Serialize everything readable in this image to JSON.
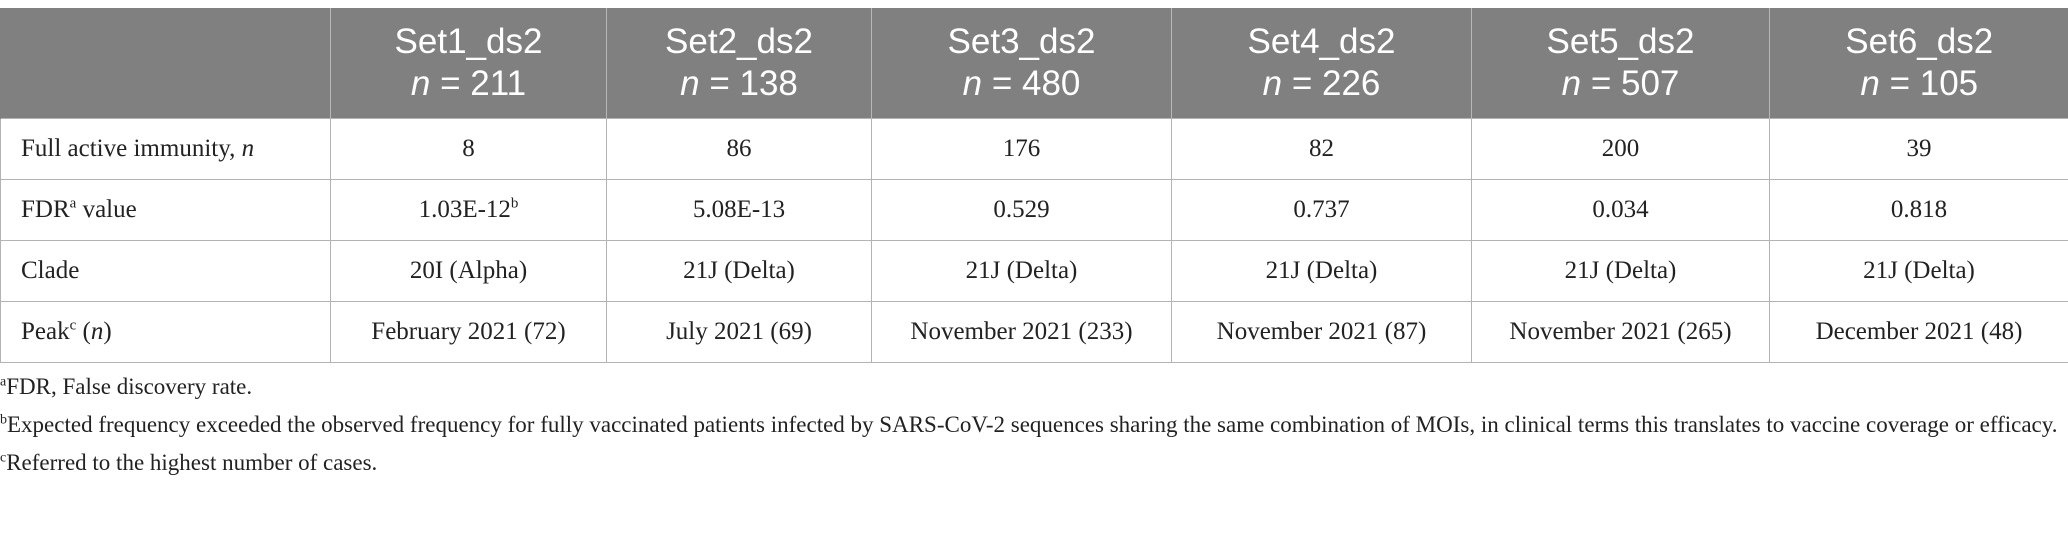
{
  "table": {
    "columns": [
      {
        "name": "Set1_ds2",
        "n_prefix": "n",
        "n_value": "= 211"
      },
      {
        "name": "Set2_ds2",
        "n_prefix": "n",
        "n_value": "= 138"
      },
      {
        "name": "Set3_ds2",
        "n_prefix": "n",
        "n_value": "= 480"
      },
      {
        "name": "Set4_ds2",
        "n_prefix": "n",
        "n_value": "= 226"
      },
      {
        "name": "Set5_ds2",
        "n_prefix": "n",
        "n_value": "= 507"
      },
      {
        "name": "Set6_ds2",
        "n_prefix": "n",
        "n_value": "= 105"
      }
    ],
    "rows": [
      {
        "label": "Full active immunity, ",
        "label_italic": "n",
        "cells": [
          "8",
          "86",
          "176",
          "82",
          "200",
          "39"
        ]
      },
      {
        "label": "FDR",
        "label_sup": "a",
        "label_rest": " value",
        "cells": [
          "1.03E-12",
          "5.08E-13",
          "0.529",
          "0.737",
          "0.034",
          "0.818"
        ],
        "first_cell_sup": "b"
      },
      {
        "label": "Clade",
        "cells": [
          "20I (Alpha)",
          "21J (Delta)",
          "21J (Delta)",
          "21J (Delta)",
          "21J (Delta)",
          "21J (Delta)"
        ]
      },
      {
        "label": "Peak",
        "label_sup": "c",
        "label_rest": " (",
        "label_italic": "n",
        "label_close": ")",
        "cells": [
          "February 2021 (72)",
          "July 2021 (69)",
          "November 2021 (233)",
          "November 2021 (87)",
          "November 2021 (265)",
          "December 2021 (48)"
        ]
      }
    ]
  },
  "footnotes": [
    {
      "mark": "a",
      "text": "FDR, False discovery rate."
    },
    {
      "mark": "b",
      "text": "Expected frequency exceeded the observed frequency for fully vaccinated patients infected by SARS-CoV-2 sequences sharing the same combination of MOIs, in clinical terms this translates to vaccine coverage or efficacy."
    },
    {
      "mark": "c",
      "text": "Referred to the highest number of cases."
    }
  ]
}
